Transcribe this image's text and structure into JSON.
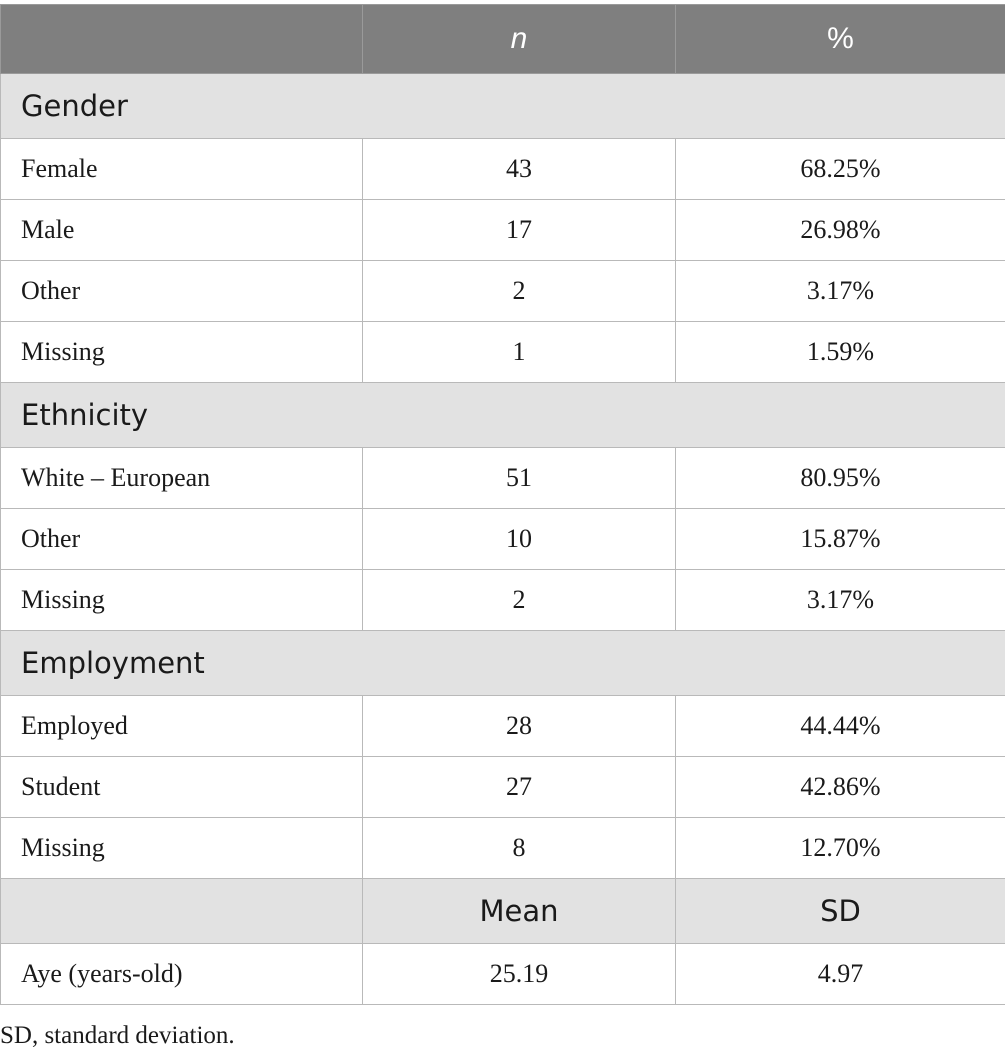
{
  "header": {
    "col1": "",
    "col2": "n",
    "col3": "%"
  },
  "sections": [
    {
      "title": "Gender",
      "rows": [
        {
          "label": "Female",
          "n": "43",
          "pct": "68.25%"
        },
        {
          "label": "Male",
          "n": "17",
          "pct": "26.98%"
        },
        {
          "label": "Other",
          "n": "2",
          "pct": "3.17%"
        },
        {
          "label": "Missing",
          "n": "1",
          "pct": "1.59%"
        }
      ]
    },
    {
      "title": "Ethnicity",
      "rows": [
        {
          "label": "White – European",
          "n": "51",
          "pct": "80.95%"
        },
        {
          "label": "Other",
          "n": "10",
          "pct": "15.87%"
        },
        {
          "label": "Missing",
          "n": "2",
          "pct": "3.17%"
        }
      ]
    },
    {
      "title": "Employment",
      "rows": [
        {
          "label": "Employed",
          "n": "28",
          "pct": "44.44%"
        },
        {
          "label": "Student",
          "n": "27",
          "pct": "42.86%"
        },
        {
          "label": "Missing",
          "n": "8",
          "pct": "12.70%"
        }
      ]
    }
  ],
  "stats_header": {
    "col1": "",
    "col2": "Mean",
    "col3": "SD"
  },
  "stats_row": {
    "label": "Aye (years-old)",
    "mean": "25.19",
    "sd": "4.97"
  },
  "footnote": "SD, standard deviation."
}
